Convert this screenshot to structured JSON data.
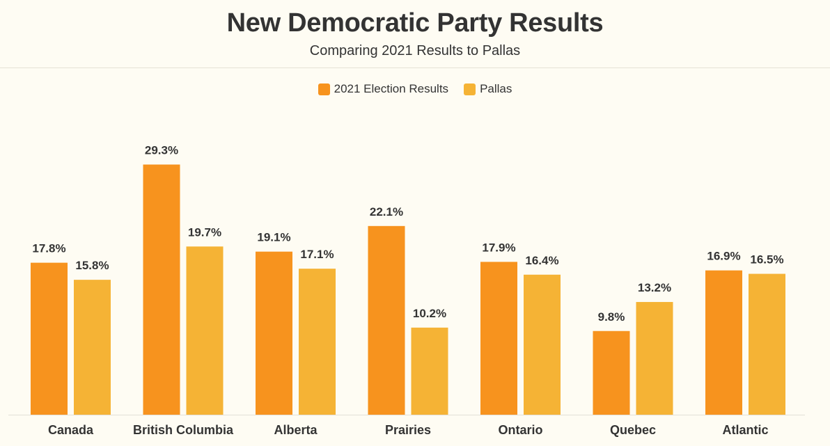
{
  "chart_data": {
    "type": "bar",
    "title": "New Democratic Party Results",
    "subtitle": "Comparing 2021 Results to Pallas",
    "categories": [
      "Canada",
      "British Columbia",
      "Alberta",
      "Prairies",
      "Ontario",
      "Quebec",
      "Atlantic"
    ],
    "series": [
      {
        "name": "2021 Election Results",
        "color": "#f7931e",
        "values": [
          17.8,
          29.3,
          19.1,
          22.1,
          17.9,
          9.8,
          16.9
        ],
        "labels": [
          "17.8%",
          "29.3%",
          "19.1%",
          "22.1%",
          "17.9%",
          "9.8%",
          "16.9%"
        ]
      },
      {
        "name": "Pallas",
        "color": "#f5b335",
        "values": [
          15.8,
          19.7,
          17.1,
          10.2,
          16.4,
          13.2,
          16.5
        ],
        "labels": [
          "15.8%",
          "19.7%",
          "17.1%",
          "10.2%",
          "16.4%",
          "13.2%",
          "16.5%"
        ]
      }
    ],
    "xlabel": "",
    "ylabel": "",
    "ylim": [
      0,
      35
    ],
    "grid": false,
    "legend_position": "top-center"
  }
}
